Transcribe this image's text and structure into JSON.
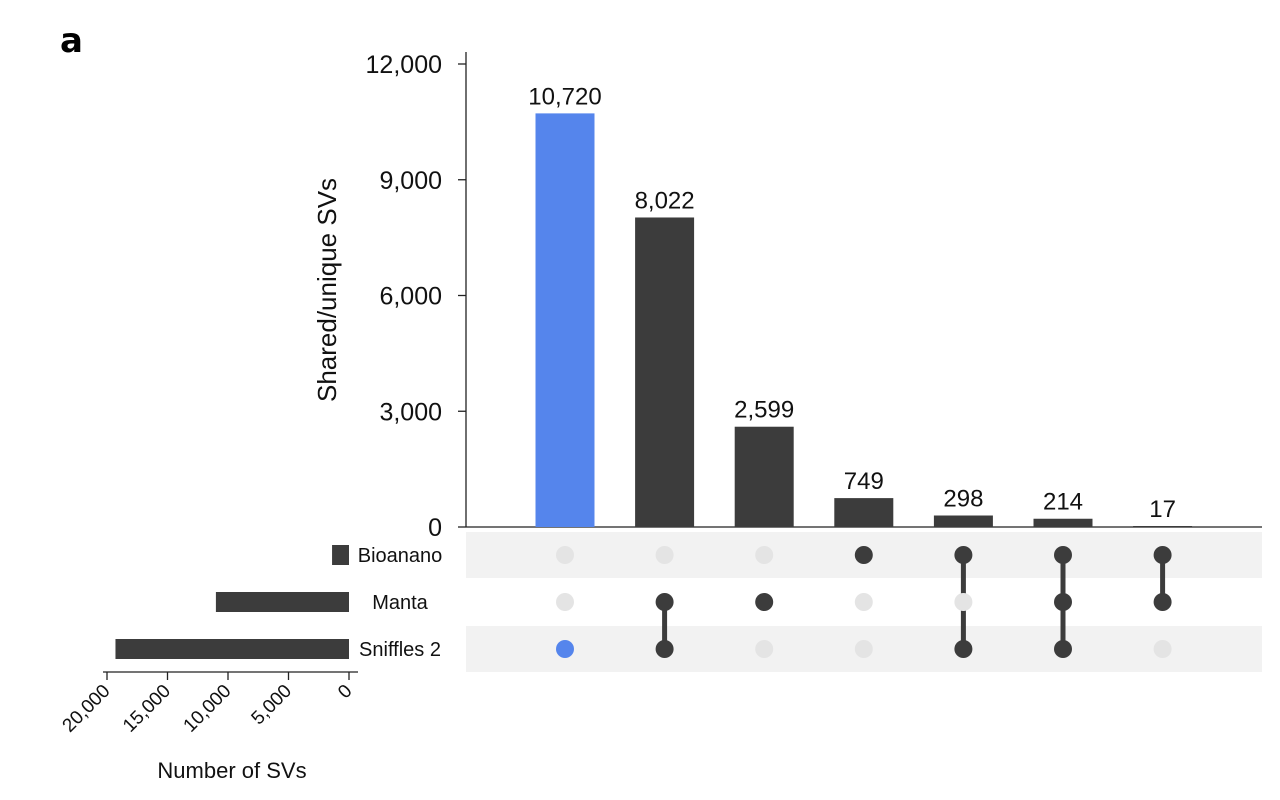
{
  "panel_label": "a",
  "colors": {
    "highlight": "#5585EC",
    "bar": "#3C3C3C",
    "dot_inactive": "#E4E4E4",
    "stripe": "#F2F2F2",
    "axis": "#222222"
  },
  "chart_data": [
    {
      "type": "bar",
      "role": "intersection-sizes",
      "ylabel": "Shared/unique SVs",
      "ylim": [
        0,
        12000
      ],
      "yticks": [
        0,
        3000,
        6000,
        9000,
        12000
      ],
      "ytick_labels": [
        "0",
        "3,000",
        "6,000",
        "9,000",
        "12,000"
      ],
      "values": [
        10720,
        8022,
        2599,
        749,
        298,
        214,
        17
      ],
      "value_labels": [
        "10,720",
        "8,022",
        "2,599",
        "749",
        "298",
        "214",
        "17"
      ],
      "highlight_index": 0,
      "sets": [
        "Bioanano",
        "Manta",
        "Sniffles 2"
      ],
      "membership": [
        [
          false,
          false,
          true
        ],
        [
          false,
          true,
          true
        ],
        [
          false,
          true,
          false
        ],
        [
          true,
          false,
          false
        ],
        [
          true,
          false,
          true
        ],
        [
          true,
          true,
          true
        ],
        [
          true,
          true,
          false
        ]
      ]
    },
    {
      "type": "bar",
      "role": "set-sizes",
      "orientation": "horizontal-reversed",
      "xlabel": "Number of SVs",
      "xlim": [
        0,
        20000
      ],
      "xticks": [
        20000,
        15000,
        10000,
        5000,
        0
      ],
      "xtick_labels": [
        "20,000",
        "15,000",
        "10,000",
        "5,000",
        "0"
      ],
      "categories": [
        "Bioanano",
        "Manta",
        "Sniffles 2"
      ],
      "values": [
        1400,
        11000,
        19300
      ]
    }
  ]
}
